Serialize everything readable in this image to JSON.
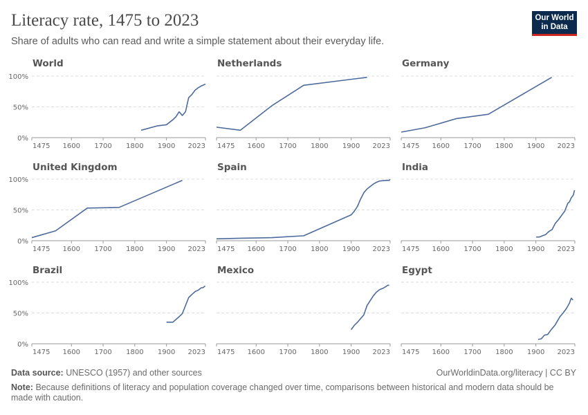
{
  "title": "Literacy rate, 1475 to 2023",
  "subtitle": "Share of adults who can read and write a simple statement about their everyday life.",
  "logo": [
    "Our World",
    "in Data"
  ],
  "source_label": "Data source:",
  "source": "UNESCO (1957) and other sources",
  "license": "OurWorldinData.org/literacy | CC BY",
  "note_label": "Note:",
  "note": "Because definitions of literacy and population coverage changed over time, comparisons between historical and modern data should be made with caution.",
  "chart_data": [
    {
      "type": "line",
      "title": "World",
      "color": "#4c6a9c",
      "xlim": [
        1475,
        2023
      ],
      "xticks": [
        1475,
        1600,
        1700,
        1800,
        1900,
        2023
      ],
      "ylim": [
        0,
        100
      ],
      "yticks": [
        {
          "value": 0,
          "label": "0%"
        },
        {
          "value": 50,
          "label": "50%"
        },
        {
          "value": 100,
          "label": "100%"
        }
      ],
      "x": [
        1820,
        1870,
        1900,
        1920,
        1930,
        1940,
        1950,
        1960,
        1970,
        1980,
        1990,
        2000,
        2010,
        2023
      ],
      "values": [
        12,
        19,
        21,
        29,
        34,
        42,
        36,
        42,
        65,
        70,
        77,
        81,
        84,
        87
      ]
    },
    {
      "type": "line",
      "title": "Netherlands",
      "color": "#4c6a9c",
      "xlim": [
        1475,
        2023
      ],
      "xticks": [
        1475,
        1600,
        1700,
        1800,
        1900,
        2023
      ],
      "ylim": [
        0,
        100
      ],
      "yticks": [
        0,
        50,
        100
      ],
      "x": [
        1475,
        1550,
        1650,
        1750,
        1950
      ],
      "values": [
        17,
        12,
        52,
        85,
        98
      ]
    },
    {
      "type": "line",
      "title": "Germany",
      "color": "#4c6a9c",
      "xlim": [
        1475,
        2023
      ],
      "xticks": [
        1475,
        1600,
        1700,
        1800,
        1900,
        2023
      ],
      "ylim": [
        0,
        100
      ],
      "yticks": [
        0,
        50,
        100
      ],
      "x": [
        1475,
        1550,
        1650,
        1750,
        1950
      ],
      "values": [
        9,
        16,
        31,
        38,
        98
      ]
    },
    {
      "type": "line",
      "title": "United Kingdom",
      "color": "#4c6a9c",
      "xlim": [
        1475,
        2023
      ],
      "xticks": [
        1475,
        1600,
        1700,
        1800,
        1900,
        2023
      ],
      "ylim": [
        0,
        100
      ],
      "yticks": [
        {
          "value": 0,
          "label": "0%"
        },
        {
          "value": 50,
          "label": "50%"
        },
        {
          "value": 100,
          "label": "100%"
        }
      ],
      "x": [
        1475,
        1550,
        1650,
        1750,
        1950
      ],
      "values": [
        5,
        16,
        53,
        54,
        98
      ]
    },
    {
      "type": "line",
      "title": "Spain",
      "color": "#4c6a9c",
      "xlim": [
        1475,
        2023
      ],
      "xticks": [
        1475,
        1600,
        1700,
        1800,
        1900,
        2023
      ],
      "ylim": [
        0,
        100
      ],
      "yticks": [
        0,
        50,
        100
      ],
      "x": [
        1475,
        1550,
        1650,
        1750,
        1900,
        1910,
        1920,
        1930,
        1940,
        1950,
        1960,
        1970,
        1980,
        1990,
        2010,
        2020,
        2023
      ],
      "values": [
        3,
        4,
        5,
        8,
        42,
        48,
        56,
        68,
        78,
        84,
        88,
        92,
        95,
        97,
        98,
        98,
        100
      ]
    },
    {
      "type": "line",
      "title": "India",
      "color": "#4c6a9c",
      "xlim": [
        1475,
        2023
      ],
      "xticks": [
        1475,
        1600,
        1700,
        1800,
        1900,
        2023
      ],
      "ylim": [
        0,
        100
      ],
      "yticks": [
        0,
        50,
        100
      ],
      "x": [
        1901,
        1911,
        1921,
        1931,
        1941,
        1951,
        1961,
        1971,
        1981,
        1991,
        2001,
        2006,
        2011,
        2018,
        2022
      ],
      "values": [
        6,
        6,
        8,
        10,
        15,
        18,
        28,
        34,
        41,
        48,
        61,
        63,
        69,
        74,
        82
      ]
    },
    {
      "type": "line",
      "title": "Brazil",
      "color": "#4c6a9c",
      "xlim": [
        1475,
        2023
      ],
      "xticks": [
        1475,
        1600,
        1700,
        1800,
        1900,
        2023
      ],
      "ylim": [
        0,
        100
      ],
      "yticks": [
        {
          "value": 0,
          "label": "0%"
        },
        {
          "value": 50,
          "label": "50%"
        },
        {
          "value": 100,
          "label": "100%"
        }
      ],
      "x": [
        1900,
        1920,
        1940,
        1950,
        1970,
        1980,
        1991,
        2000,
        2010,
        2015,
        2022
      ],
      "values": [
        35,
        35,
        44,
        49,
        75,
        80,
        85,
        87,
        91,
        91,
        94
      ]
    },
    {
      "type": "line",
      "title": "Mexico",
      "color": "#4c6a9c",
      "xlim": [
        1475,
        2023
      ],
      "xticks": [
        1475,
        1600,
        1700,
        1800,
        1900,
        2023
      ],
      "ylim": [
        0,
        100
      ],
      "yticks": [
        0,
        50,
        100
      ],
      "x": [
        1900,
        1910,
        1920,
        1930,
        1940,
        1950,
        1960,
        1970,
        1980,
        1990,
        2000,
        2010,
        2015,
        2020
      ],
      "values": [
        23,
        30,
        35,
        41,
        47,
        62,
        70,
        78,
        84,
        88,
        90,
        93,
        95,
        95
      ]
    },
    {
      "type": "line",
      "title": "Egypt",
      "color": "#4c6a9c",
      "xlim": [
        1475,
        2023
      ],
      "xticks": [
        1475,
        1600,
        1700,
        1800,
        1900,
        2023
      ],
      "ylim": [
        0,
        100
      ],
      "yticks": [
        0,
        50,
        100
      ],
      "x": [
        1907,
        1917,
        1927,
        1937,
        1947,
        1960,
        1976,
        1986,
        1996,
        2006,
        2010,
        2012,
        2017
      ],
      "values": [
        7,
        8,
        14,
        15,
        22,
        30,
        44,
        50,
        57,
        66,
        72,
        74,
        71
      ]
    }
  ]
}
